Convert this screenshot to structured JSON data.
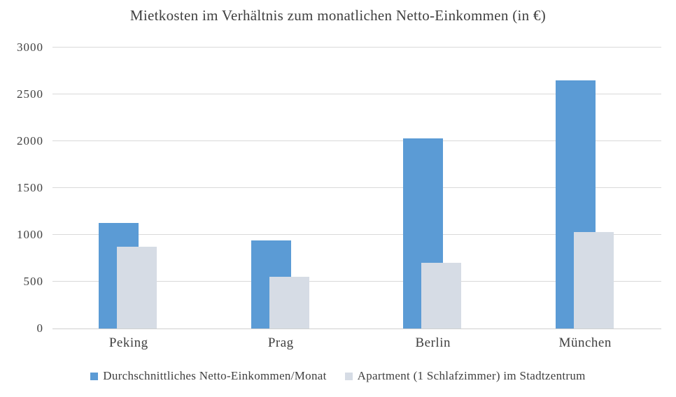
{
  "chart_data": {
    "type": "bar",
    "title": "Mietkosten im Verhältnis zum monatlichen Netto-Einkommen (in €)",
    "categories": [
      "Peking",
      "Prag",
      "Berlin",
      "München"
    ],
    "series": [
      {
        "key": "income",
        "name": "Durchschnittliches Netto-Einkommen/Monat",
        "color": "#5B9BD5",
        "values": [
          1130,
          940,
          2030,
          2650
        ]
      },
      {
        "key": "rent",
        "name": "Apartment (1 Schlafzimmer) im Stadtzentrum",
        "color": "#D6DCE5",
        "values": [
          870,
          550,
          700,
          1030
        ]
      }
    ],
    "xlabel": "",
    "ylabel": "",
    "ylim": [
      0,
      3000
    ],
    "yticks": [
      0,
      500,
      1000,
      1500,
      2000,
      2500,
      3000
    ],
    "grid": true,
    "legend_position": "bottom",
    "colors": {
      "grid": "#D9D9D9",
      "axis_line": "#D0D0D0",
      "text": "#404040",
      "background": "#FFFFFF"
    }
  }
}
